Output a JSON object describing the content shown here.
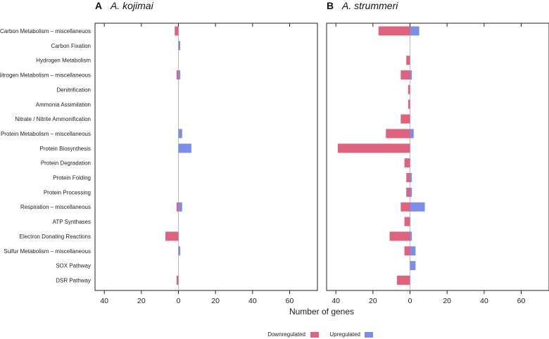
{
  "chart_data": {
    "type": "bar",
    "orientation": "horizontal",
    "xlabel": "Number of genes",
    "xlim": [
      -45,
      75
    ],
    "xticks": [
      -40,
      -20,
      0,
      20,
      40,
      60
    ],
    "xtick_labels": [
      "40",
      "20",
      "0",
      "20",
      "40",
      "60"
    ],
    "legend_position": "bottom",
    "series_colors": {
      "Downregulated": "#e0637e",
      "Upregulated": "#7b8ee8"
    },
    "reference_line_color": "#bbbbbb",
    "categories": [
      "Carbon Metabolism – miscellaneuos",
      "Carbon Fixation",
      "Hydrogen Metabolism",
      "Nitrogen Metabolism – miscellaneous",
      "Denitrification",
      "Ammonia Assimilation",
      "Nitrate / Nitrite Ammonification",
      "Protein Metabolism – miscellaneous",
      "Protein Biosynthesis",
      "Protein Degradation",
      "Protein Folding",
      "Protein Processing",
      "Respiration – miscellaneous",
      "ATP Synthases",
      "Electron Donating Reactions",
      "Sulfur Metabolism – miscellaneous",
      "SOX Pathway",
      "DSR Pathway"
    ],
    "panels": [
      {
        "letter": "A",
        "title": "A. kojimai",
        "series": [
          {
            "name": "Downregulated",
            "values": [
              -2,
              0,
              0,
              -1,
              0,
              0,
              0,
              0,
              0,
              0,
              0,
              0,
              -1,
              0,
              -7,
              0,
              0,
              -1
            ]
          },
          {
            "name": "Upregulated",
            "values": [
              0,
              1,
              0,
              1,
              0,
              0,
              0,
              2,
              7,
              0,
              0,
              0,
              2,
              0,
              0,
              1,
              0,
              0
            ]
          }
        ]
      },
      {
        "letter": "B",
        "title": "A. strummeri",
        "series": [
          {
            "name": "Downregulated",
            "values": [
              -17,
              0,
              -2,
              -5,
              -1,
              -1,
              -5,
              -13,
              -39,
              -3,
              -2,
              -2,
              -5,
              -3,
              -11,
              -3,
              0,
              -7
            ]
          },
          {
            "name": "Upregulated",
            "values": [
              5,
              0,
              0,
              1,
              0,
              0,
              0,
              2,
              0,
              0,
              1,
              1,
              8,
              0,
              1,
              3,
              3,
              0
            ]
          }
        ]
      }
    ]
  }
}
